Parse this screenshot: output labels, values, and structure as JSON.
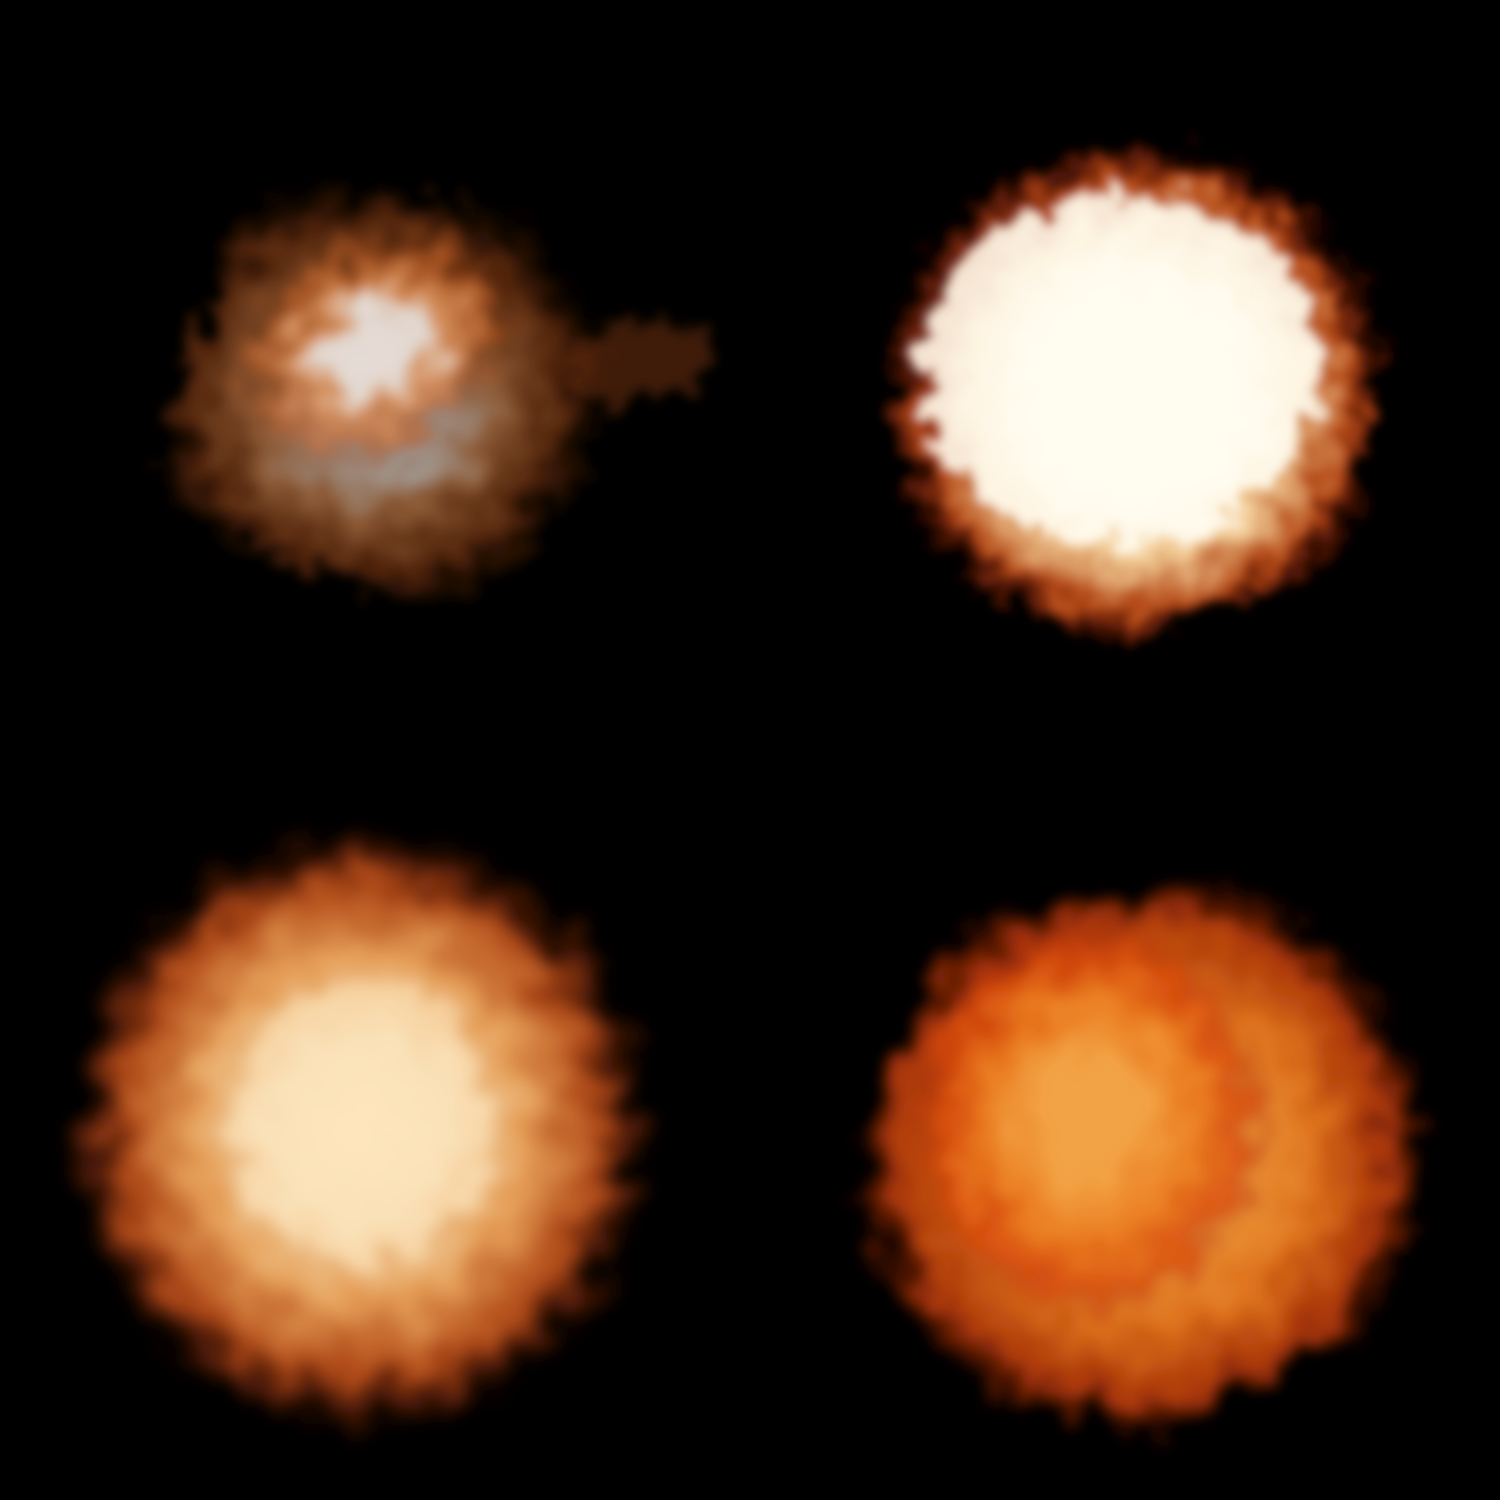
{
  "background_color": "#000000",
  "sprites": [
    {
      "id": "sprite-tl",
      "name": "explosion-cloud-sprite-1",
      "core_color": "#fff4ec",
      "mid_color": "#f7a060",
      "outer_color": "#c8581a",
      "edge_color": "#6a2a08",
      "intensity": 0.75
    },
    {
      "id": "sprite-tr",
      "name": "explosion-cloud-sprite-2",
      "core_color": "#fffbf0",
      "mid_color": "#ffd9a0",
      "outer_color": "#e05a1a",
      "edge_color": "#b01808",
      "intensity": 1.0
    },
    {
      "id": "sprite-bl",
      "name": "explosion-cloud-sprite-3",
      "core_color": "#ffe6bc",
      "mid_color": "#ffb060",
      "outer_color": "#e8601e",
      "edge_color": "#a82a0a",
      "intensity": 0.85
    },
    {
      "id": "sprite-br",
      "name": "explosion-cloud-sprite-4",
      "core_color": "#ffac48",
      "mid_color": "#f78020",
      "outer_color": "#e0480c",
      "edge_color": "#a01e06",
      "intensity": 0.8
    }
  ]
}
